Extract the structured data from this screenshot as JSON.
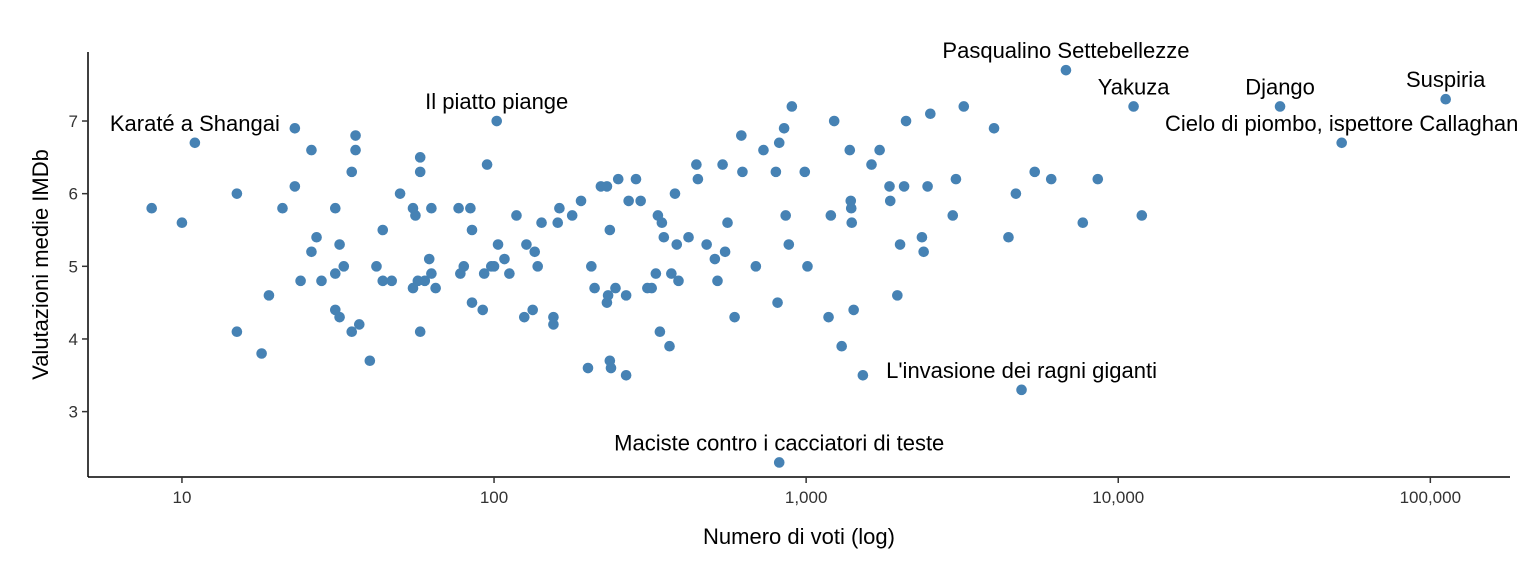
{
  "chart_data": {
    "type": "scatter",
    "title": "",
    "xlabel": "Numero di voti (log)",
    "ylabel": "Valutazioni medie IMDb",
    "x_scale": "log10",
    "xlim": [
      5,
      180000
    ],
    "ylim": [
      2.1,
      7.95
    ],
    "grid": false,
    "point_color": "#4682B4",
    "x_ticks": [
      {
        "value": 10,
        "label": "10"
      },
      {
        "value": 100,
        "label": "100"
      },
      {
        "value": 1000,
        "label": "1,000"
      },
      {
        "value": 10000,
        "label": "10,000"
      },
      {
        "value": 100000,
        "label": "100,000"
      }
    ],
    "y_ticks": [
      {
        "value": 3,
        "label": "3"
      },
      {
        "value": 4,
        "label": "4"
      },
      {
        "value": 5,
        "label": "5"
      },
      {
        "value": 6,
        "label": "6"
      },
      {
        "value": 7,
        "label": "7"
      }
    ],
    "annotations": [
      {
        "text": "Pasqualino Settebellezze",
        "x": 6800,
        "y": 7.7
      },
      {
        "text": "Django",
        "x": 33000,
        "y": 7.2
      },
      {
        "text": "Suspiria",
        "x": 112000,
        "y": 7.3
      },
      {
        "text": "Il piatto piange",
        "x": 102,
        "y": 7.0
      },
      {
        "text": "Yakuza",
        "x": 11200,
        "y": 7.2
      },
      {
        "text": "Karaté a Shangai",
        "x": 11,
        "y": 6.7
      },
      {
        "text": "Cielo di piombo, ispettore Callaghan",
        "x": 52000,
        "y": 6.7
      },
      {
        "text": "L'invasione dei ragni giganti",
        "x": 4900,
        "y": 3.3
      },
      {
        "text": "Maciste contro i cacciatori di teste",
        "x": 820,
        "y": 2.3
      }
    ],
    "points": [
      [
        8,
        5.8
      ],
      [
        10,
        5.6
      ],
      [
        11,
        6.7
      ],
      [
        15,
        6.0
      ],
      [
        15,
        4.1
      ],
      [
        18,
        3.8
      ],
      [
        19,
        4.6
      ],
      [
        21,
        5.8
      ],
      [
        23,
        6.9
      ],
      [
        23,
        6.1
      ],
      [
        24,
        4.8
      ],
      [
        26,
        6.6
      ],
      [
        26,
        5.2
      ],
      [
        27,
        5.4
      ],
      [
        28,
        4.8
      ],
      [
        31,
        5.8
      ],
      [
        31,
        4.9
      ],
      [
        31,
        4.4
      ],
      [
        32,
        5.3
      ],
      [
        32,
        4.3
      ],
      [
        33,
        5.0
      ],
      [
        35,
        6.3
      ],
      [
        35,
        4.1
      ],
      [
        36,
        6.8
      ],
      [
        36,
        6.6
      ],
      [
        37,
        4.2
      ],
      [
        40,
        3.7
      ],
      [
        42,
        5.0
      ],
      [
        44,
        5.5
      ],
      [
        44,
        4.8
      ],
      [
        47,
        4.8
      ],
      [
        50,
        6.0
      ],
      [
        55,
        5.8
      ],
      [
        55,
        4.7
      ],
      [
        56,
        5.7
      ],
      [
        57,
        4.8
      ],
      [
        58,
        6.5
      ],
      [
        58,
        6.3
      ],
      [
        58,
        4.1
      ],
      [
        60,
        4.8
      ],
      [
        62,
        5.1
      ],
      [
        63,
        5.8
      ],
      [
        63,
        4.9
      ],
      [
        65,
        4.7
      ],
      [
        77,
        5.8
      ],
      [
        78,
        4.9
      ],
      [
        80,
        5.0
      ],
      [
        84,
        5.8
      ],
      [
        85,
        5.5
      ],
      [
        85,
        4.5
      ],
      [
        92,
        4.4
      ],
      [
        93,
        4.9
      ],
      [
        95,
        6.4
      ],
      [
        98,
        5.0
      ],
      [
        100,
        5.0
      ],
      [
        102,
        7.0
      ],
      [
        103,
        5.3
      ],
      [
        108,
        5.1
      ],
      [
        112,
        4.9
      ],
      [
        118,
        5.7
      ],
      [
        125,
        4.3
      ],
      [
        127,
        5.3
      ],
      [
        133,
        4.4
      ],
      [
        135,
        5.2
      ],
      [
        138,
        5.0
      ],
      [
        142,
        5.6
      ],
      [
        155,
        4.3
      ],
      [
        155,
        4.2
      ],
      [
        160,
        5.6
      ],
      [
        162,
        5.8
      ],
      [
        178,
        5.7
      ],
      [
        190,
        5.9
      ],
      [
        200,
        3.6
      ],
      [
        205,
        5.0
      ],
      [
        210,
        4.7
      ],
      [
        220,
        6.1
      ],
      [
        230,
        6.1
      ],
      [
        230,
        4.5
      ],
      [
        232,
        4.6
      ],
      [
        235,
        5.5
      ],
      [
        235,
        3.7
      ],
      [
        237,
        3.6
      ],
      [
        245,
        4.7
      ],
      [
        250,
        6.2
      ],
      [
        265,
        4.6
      ],
      [
        265,
        3.5
      ],
      [
        270,
        5.9
      ],
      [
        285,
        6.2
      ],
      [
        295,
        5.9
      ],
      [
        310,
        4.7
      ],
      [
        320,
        4.7
      ],
      [
        330,
        4.9
      ],
      [
        335,
        5.7
      ],
      [
        340,
        4.1
      ],
      [
        345,
        5.6
      ],
      [
        350,
        5.4
      ],
      [
        365,
        3.9
      ],
      [
        370,
        4.9
      ],
      [
        380,
        6.0
      ],
      [
        385,
        5.3
      ],
      [
        390,
        4.8
      ],
      [
        420,
        5.4
      ],
      [
        445,
        6.4
      ],
      [
        450,
        6.2
      ],
      [
        480,
        5.3
      ],
      [
        510,
        5.1
      ],
      [
        520,
        4.8
      ],
      [
        540,
        6.4
      ],
      [
        550,
        5.2
      ],
      [
        560,
        5.6
      ],
      [
        590,
        4.3
      ],
      [
        620,
        6.8
      ],
      [
        625,
        6.3
      ],
      [
        690,
        5.0
      ],
      [
        730,
        6.6
      ],
      [
        800,
        6.3
      ],
      [
        810,
        4.5
      ],
      [
        820,
        6.7
      ],
      [
        850,
        6.9
      ],
      [
        860,
        5.7
      ],
      [
        880,
        5.3
      ],
      [
        900,
        7.2
      ],
      [
        990,
        6.3
      ],
      [
        1010,
        5.0
      ],
      [
        1180,
        4.3
      ],
      [
        1200,
        5.7
      ],
      [
        1230,
        7.0
      ],
      [
        1300,
        3.9
      ],
      [
        1380,
        6.6
      ],
      [
        1390,
        5.9
      ],
      [
        1395,
        5.8
      ],
      [
        1400,
        5.6
      ],
      [
        1420,
        4.4
      ],
      [
        1520,
        3.5
      ],
      [
        1620,
        6.4
      ],
      [
        1720,
        6.6
      ],
      [
        1850,
        6.1
      ],
      [
        1860,
        5.9
      ],
      [
        1960,
        4.6
      ],
      [
        2000,
        5.3
      ],
      [
        2060,
        6.1
      ],
      [
        2090,
        7.0
      ],
      [
        2350,
        5.4
      ],
      [
        2380,
        5.2
      ],
      [
        2450,
        6.1
      ],
      [
        2500,
        7.1
      ],
      [
        2950,
        5.7
      ],
      [
        3020,
        6.2
      ],
      [
        3200,
        7.2
      ],
      [
        4000,
        6.9
      ],
      [
        4450,
        5.4
      ],
      [
        4700,
        6.0
      ],
      [
        5400,
        6.3
      ],
      [
        6100,
        6.2
      ],
      [
        6800,
        7.7
      ],
      [
        7700,
        5.6
      ],
      [
        8600,
        6.2
      ],
      [
        11200,
        7.2
      ],
      [
        11900,
        5.7
      ],
      [
        33000,
        7.2
      ],
      [
        52000,
        6.7
      ],
      [
        112000,
        7.3
      ],
      [
        4900,
        3.3
      ],
      [
        820,
        2.3
      ]
    ]
  }
}
